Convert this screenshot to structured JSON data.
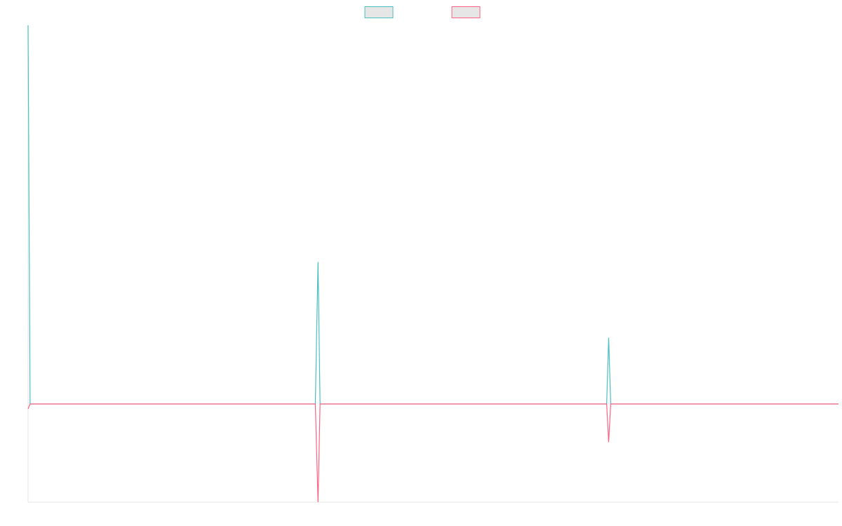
{
  "chart_data": {
    "type": "line",
    "title": "",
    "xlabel": "",
    "ylabel": "",
    "grid": false,
    "legend": "top-center",
    "x": [
      0,
      1,
      2,
      3,
      4,
      5,
      6,
      7,
      8,
      9,
      10,
      11,
      12,
      13,
      14,
      15,
      16,
      17,
      18,
      19,
      20,
      21,
      22,
      23,
      24,
      25,
      26,
      27,
      28,
      29,
      30,
      31,
      32,
      33,
      34,
      35,
      36,
      37,
      38,
      39,
      40,
      41,
      42,
      43,
      44,
      45,
      46,
      47,
      48,
      49,
      50,
      51,
      52,
      53,
      54,
      55,
      56,
      57,
      58,
      59,
      60,
      61,
      62,
      63,
      64,
      65,
      66,
      67,
      68,
      69,
      70,
      71,
      72,
      73,
      74,
      75,
      76,
      77,
      78,
      79,
      80,
      81,
      82,
      83,
      84,
      85,
      86,
      87,
      88,
      89,
      90,
      91,
      92,
      93,
      94,
      95,
      96,
      97,
      98,
      99,
      100,
      101,
      102,
      103,
      104,
      105,
      106,
      107,
      108,
      109,
      110,
      111,
      112,
      113,
      114,
      115,
      116,
      117,
      118,
      119,
      120,
      121,
      122,
      123,
      124,
      125,
      126,
      127,
      128,
      129,
      130,
      131,
      132,
      133,
      134,
      135,
      136,
      137,
      138,
      139,
      140,
      141,
      142,
      143,
      144,
      145,
      146,
      147,
      148,
      149,
      150,
      151,
      152,
      153,
      154,
      155,
      156,
      157,
      158,
      159,
      160,
      161,
      162,
      163,
      164,
      165,
      166,
      167,
      168,
      169,
      170,
      171,
      172,
      173,
      174,
      175,
      176,
      177,
      178,
      179,
      180,
      181,
      182,
      183,
      184,
      185,
      186,
      187,
      188,
      189,
      190,
      191,
      192,
      193,
      194,
      195,
      196,
      197,
      198,
      199,
      200,
      201,
      202,
      203,
      204,
      205,
      206,
      207,
      208,
      209,
      210,
      211,
      212,
      213,
      214,
      215,
      216,
      217,
      218,
      219,
      220,
      221,
      222,
      223,
      224,
      225,
      226,
      227,
      228,
      229,
      230,
      231,
      232,
      233,
      234,
      235,
      236,
      237,
      238,
      239,
      240,
      241,
      242,
      243,
      244,
      245,
      246,
      247,
      248,
      249,
      250,
      251,
      252,
      253,
      254,
      255,
      256,
      257,
      258,
      259,
      260,
      261,
      262,
      263,
      264,
      265,
      266,
      267,
      268,
      269,
      270,
      271,
      272,
      273,
      274,
      275,
      276,
      277,
      278,
      279,
      280,
      281,
      282,
      283,
      284,
      285,
      286,
      287,
      288,
      289,
      290,
      291,
      292,
      293,
      294,
      295,
      296,
      297,
      298,
      299,
      300,
      301,
      302,
      303,
      304,
      305,
      306,
      307,
      308,
      309,
      310,
      311,
      312,
      313,
      314,
      315,
      316,
      317,
      318,
      319,
      320,
      321,
      322,
      323,
      324,
      325,
      326,
      327,
      328,
      329,
      330,
      331,
      332,
      333,
      334,
      335,
      336,
      337,
      338,
      339,
      340,
      341,
      342,
      343,
      344,
      345,
      346,
      347,
      348,
      349,
      350,
      351,
      352,
      353,
      354,
      355,
      356,
      357,
      358,
      359,
      360,
      361,
      362,
      363,
      364,
      365,
      366,
      367,
      368,
      369,
      370,
      371,
      372,
      373,
      374,
      375,
      376,
      377,
      378,
      379,
      380,
      381,
      382,
      383,
      384,
      385,
      386,
      387,
      388,
      389,
      390,
      391,
      392,
      393,
      394,
      395,
      396,
      397,
      398,
      399,
      400,
      401,
      402,
      403,
      404,
      405,
      406,
      407,
      408,
      409,
      410,
      411,
      412,
      413,
      414,
      415,
      416,
      417,
      418,
      419,
      420,
      421,
      422,
      423,
      424,
      425,
      426,
      427,
      428,
      429,
      430,
      431,
      432,
      433,
      434,
      435,
      436,
      437,
      438,
      439,
      440,
      441,
      442,
      443,
      444,
      445,
      446,
      447,
      448,
      449,
      450,
      451,
      452,
      453,
      454,
      455,
      456,
      457,
      458,
      459,
      460,
      461,
      462,
      463,
      464,
      465,
      466,
      467,
      468,
      469,
      470,
      471,
      472,
      473,
      474,
      475,
      476,
      477,
      478,
      479,
      480,
      481,
      482,
      483,
      484,
      485,
      486,
      487,
      488,
      489,
      490,
      491,
      492,
      493,
      494,
      495,
      496,
      497,
      498,
      499,
      500,
      501,
      502,
      503,
      504,
      505,
      506,
      507,
      508,
      509,
      510,
      511,
      512,
      513,
      514,
      515,
      516,
      517,
      518,
      519,
      520,
      521,
      522,
      523,
      524,
      525,
      526,
      527,
      528,
      529,
      530,
      531,
      532,
      533,
      534,
      535,
      536,
      537,
      538,
      539,
      540,
      541,
      542,
      543,
      544,
      545,
      546,
      547,
      548,
      549,
      550,
      551,
      552,
      553,
      554,
      555,
      556,
      557,
      558,
      559,
      560,
      561,
      562,
      563,
      564,
      565,
      566,
      567,
      568,
      569,
      570,
      571,
      572,
      573,
      574,
      575,
      576,
      577,
      578,
      579,
      580,
      581,
      582,
      583,
      584,
      585,
      586,
      587,
      588,
      589,
      590,
      591,
      592,
      593,
      594,
      595,
      596,
      597,
      598,
      599,
      600,
      601,
      602,
      603,
      604,
      605,
      606,
      607,
      608,
      609,
      610,
      611,
      612,
      613,
      614,
      615,
      616,
      617,
      618,
      619,
      620,
      621,
      622,
      623,
      624,
      625,
      626,
      627,
      628,
      629,
      630,
      631,
      632,
      633,
      634,
      635,
      636,
      637,
      638,
      639,
      640,
      641,
      642,
      643,
      644,
      645,
      646,
      647,
      648,
      649,
      650,
      651,
      652,
      653,
      654,
      655,
      656,
      657,
      658,
      659,
      660,
      661,
      662,
      663,
      664,
      665,
      666,
      667,
      668,
      669,
      670,
      671,
      672,
      673,
      674,
      675,
      676,
      677,
      678,
      679,
      680,
      681,
      682,
      683,
      684,
      685,
      686,
      687,
      688,
      689,
      690,
      691,
      692,
      693,
      694,
      695,
      696,
      697,
      698,
      699,
      700,
      701,
      702,
      703,
      704,
      705,
      706,
      707,
      708,
      709,
      710,
      711,
      712,
      713,
      714,
      715,
      716,
      717,
      718,
      719,
      720,
      721,
      722,
      723,
      724,
      725,
      726,
      727,
      728,
      729,
      730,
      731,
      732,
      733,
      734,
      735,
      736,
      737,
      738,
      739,
      740,
      741,
      742,
      743,
      744,
      745,
      746,
      747,
      748,
      749,
      750,
      751,
      752,
      753,
      754,
      755,
      756,
      757,
      758,
      759,
      760,
      761,
      762,
      763,
      764,
      765,
      766,
      767,
      768,
      769,
      770,
      771,
      772,
      773,
      774,
      775,
      776,
      777,
      778,
      779,
      780,
      781,
      782,
      783,
      784,
      785,
      786,
      787,
      788,
      789,
      790,
      791,
      792,
      793,
      794,
      795,
      796,
      797,
      798,
      799,
      800,
      801,
      802,
      803,
      804,
      805,
      806,
      807,
      808,
      809,
      810,
      811,
      812,
      813,
      814,
      815,
      816,
      817,
      818,
      819,
      820,
      821,
      822,
      823,
      824,
      825,
      826,
      827,
      828,
      829,
      830,
      831,
      832,
      833,
      834,
      835,
      836,
      837,
      838,
      839,
      840,
      841,
      842,
      843,
      844,
      845,
      846,
      847,
      848,
      849,
      850,
      851,
      852,
      853,
      854,
      855,
      856,
      857,
      858,
      859,
      860,
      861,
      862,
      863,
      864,
      865,
      866,
      867,
      868,
      869,
      870,
      871,
      872,
      873,
      874,
      875,
      876,
      877,
      878,
      879,
      880,
      881,
      882,
      883,
      884,
      885,
      886,
      887,
      888,
      889,
      890,
      891,
      892,
      893,
      894,
      895,
      896,
      897,
      898,
      899,
      900,
      901,
      902,
      903,
      904,
      905,
      906,
      907,
      908,
      909,
      910,
      911,
      912,
      913,
      914,
      915,
      916,
      917,
      918,
      919,
      920,
      921,
      922,
      923,
      924,
      925,
      926,
      927,
      928,
      929,
      930,
      931,
      932,
      933,
      934,
      935,
      936,
      937,
      938,
      939,
      940,
      941,
      942,
      943,
      944,
      945,
      946,
      947,
      948,
      949,
      950,
      951,
      952,
      953,
      954,
      955,
      956,
      957,
      958,
      959,
      960,
      961,
      962,
      963,
      964,
      965,
      966,
      967,
      968,
      969,
      970,
      971,
      972,
      973,
      974,
      975,
      976,
      977,
      978,
      979,
      980,
      981,
      982,
      983,
      984,
      985,
      986,
      987,
      988,
      989,
      990,
      991,
      992,
      993,
      994,
      995,
      996,
      997,
      998,
      999,
      1000,
      1001,
      1002,
      1003,
      1004,
      1005,
      1006,
      1007,
      1008,
      1009,
      1010,
      1011,
      1012,
      1013,
      1014,
      1015,
      1016,
      1017,
      1018,
      1019,
      1020,
      1021,
      1022,
      1023,
      1024,
      1025,
      1026,
      1027,
      1028,
      1029,
      1030,
      1031,
      1032,
      1033,
      1034,
      1035,
      1036,
      1037,
      1038,
      1039,
      1040,
      1041,
      1042,
      1043,
      1044,
      1045,
      1046,
      1047,
      1048,
      1049,
      1050,
      1051,
      1052,
      1053,
      1054,
      1055,
      1056,
      1057,
      1058,
      1059,
      1060,
      1061,
      1062,
      1063,
      1064,
      1065,
      1066,
      1067,
      1068,
      1069,
      1070,
      1071,
      1072,
      1073,
      1074,
      1075,
      1076,
      1077,
      1078,
      1079,
      1080,
      1081,
      1082,
      1083,
      1084,
      1085,
      1086,
      1087,
      1088,
      1089,
      1090,
      1091,
      1092,
      1093,
      1094,
      1095,
      1096,
      1097,
      1098,
      1099,
      1100,
      1101,
      1102,
      1103,
      1104,
      1105,
      1106,
      1107,
      1108,
      1109,
      1110,
      1111,
      1112,
      1113,
      1114,
      1115,
      1116,
      1117,
      1118,
      1119,
      1120,
      1121,
      1122,
      1123,
      1124,
      1125,
      1126,
      1127,
      1128,
      1129,
      1130,
      1131,
      1132,
      1133,
      1134,
      1135,
      1136,
      1137,
      1138,
      1139,
      1140,
      1141,
      1142,
      1143,
      1144,
      1145,
      1146,
      1147,
      1148,
      1149,
      1150,
      1151,
      1152,
      1153,
      1154,
      1155,
      1156,
      1157,
      1158,
      1159,
      1160,
      1161,
      1162,
      1163,
      1164,
      1165,
      1166,
      1167,
      1168,
      1169,
      1170,
      1171,
      1172,
      1173,
      1174,
      1175,
      1176,
      1177,
      1178,
      1179,
      1180,
      1181,
      1182,
      1183,
      1184,
      1185,
      1186,
      1187,
      1188,
      1189,
      1190,
      1191,
      1192,
      1193,
      1194,
      1195,
      1196,
      1197,
      1198,
      1199
    ],
    "ylim": [
      -1.0,
      4.0
    ],
    "xlim": [
      0,
      1199
    ],
    "series": [
      {
        "name": "",
        "color": "#4bc0c0",
        "points": [
          [
            0,
            4.0
          ],
          [
            3,
            0.0
          ],
          [
            425,
            0.0
          ],
          [
            429,
            1.5
          ],
          [
            432,
            0.0
          ],
          [
            856,
            0.0
          ],
          [
            859,
            0.7
          ],
          [
            862,
            0.0
          ],
          [
            1199,
            0.0
          ]
        ]
      },
      {
        "name": "",
        "color": "#ff6384",
        "points": [
          [
            0,
            -0.05
          ],
          [
            3,
            0.0
          ],
          [
            425,
            0.0
          ],
          [
            429,
            -1.0
          ],
          [
            432,
            0.0
          ],
          [
            856,
            0.0
          ],
          [
            859,
            -0.39
          ],
          [
            862,
            0.0
          ],
          [
            1199,
            0.0
          ]
        ]
      }
    ],
    "legend_fill": "#e6e6e6"
  }
}
